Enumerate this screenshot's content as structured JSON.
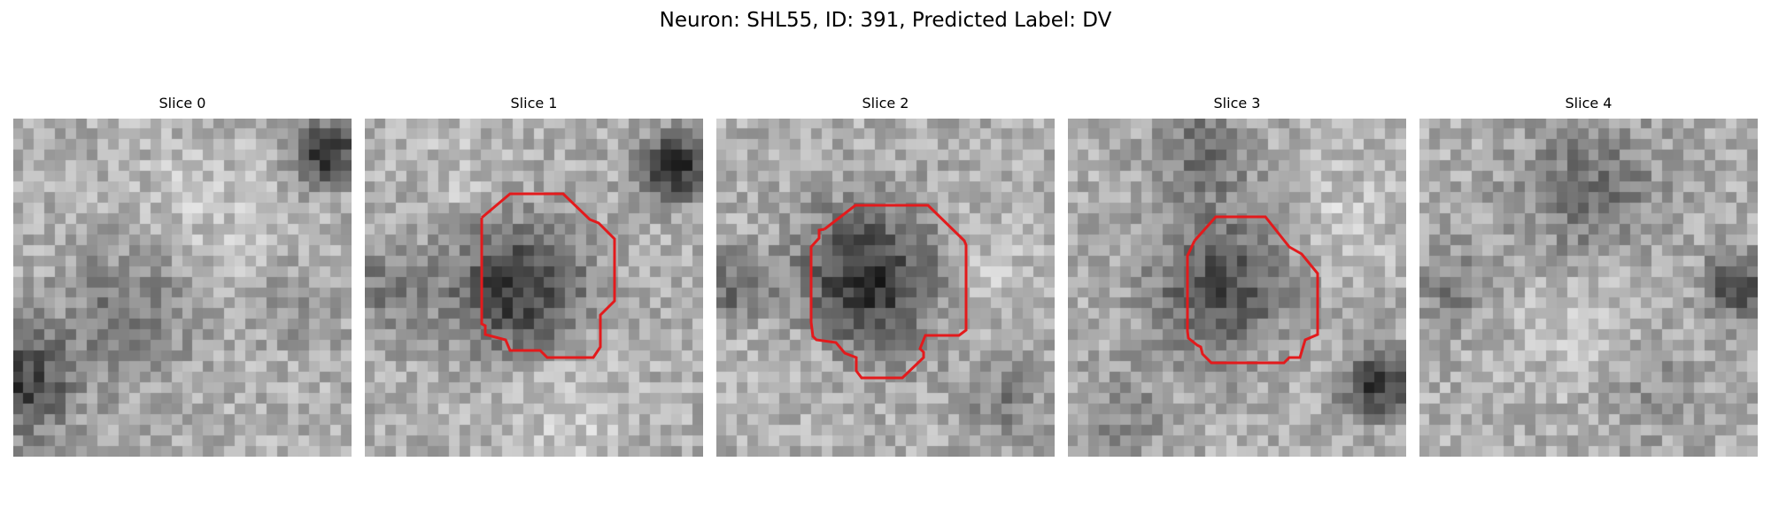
{
  "figure": {
    "title": "Neuron: SHL55, ID: 391, Predicted Label: DV"
  },
  "contour_color": "#e31a1c",
  "slices": [
    {
      "label": "Slice 0",
      "has_contour": false
    },
    {
      "label": "Slice 1",
      "has_contour": true
    },
    {
      "label": "Slice 2",
      "has_contour": true
    },
    {
      "label": "Slice 3",
      "has_contour": true
    },
    {
      "label": "Slice 4",
      "has_contour": false
    }
  ]
}
